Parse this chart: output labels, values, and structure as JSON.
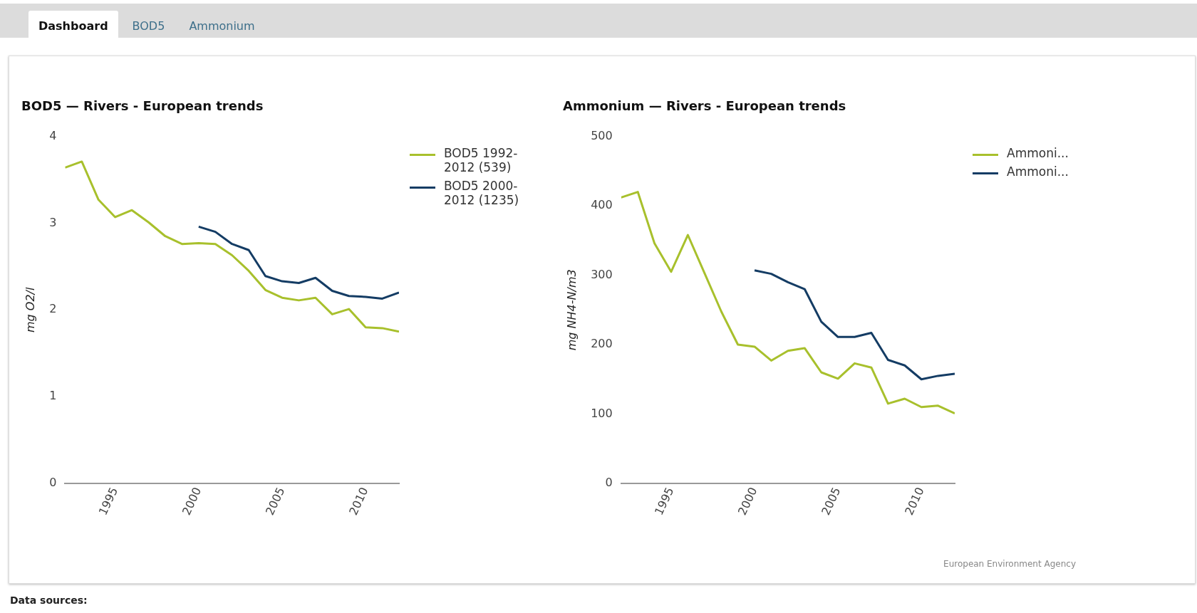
{
  "chart_data": [
    {
      "type": "line",
      "title": "BOD5 — Rivers - European trends",
      "ylabel": "mg O2/l",
      "x": [
        1992,
        1993,
        1994,
        1995,
        1996,
        1997,
        1998,
        1999,
        2000,
        2001,
        2002,
        2003,
        2004,
        2005,
        2006,
        2007,
        2008,
        2009,
        2010,
        2011,
        2012
      ],
      "series": [
        {
          "name": "BOD5 1992-2012 (539)",
          "color": "#a8c02c",
          "values": [
            3.64,
            3.71,
            3.27,
            3.07,
            3.15,
            3.01,
            2.85,
            2.76,
            2.77,
            2.76,
            2.63,
            2.45,
            2.23,
            2.14,
            2.11,
            2.14,
            1.95,
            2.01,
            1.8,
            1.79,
            1.75
          ]
        },
        {
          "name": "BOD5 2000-2012 (1235)",
          "color": "#143c64",
          "values": [
            null,
            null,
            null,
            null,
            null,
            null,
            null,
            null,
            2.96,
            2.9,
            2.76,
            2.69,
            2.39,
            2.33,
            2.31,
            2.37,
            2.22,
            2.16,
            2.15,
            2.13,
            2.2
          ]
        }
      ],
      "xlim": [
        1992,
        2012
      ],
      "xticks": [
        1995,
        2000,
        2005,
        2010
      ],
      "ylim": [
        0,
        4
      ],
      "yticks": [
        0,
        1,
        2,
        3,
        4
      ],
      "legend": "top right",
      "marker": "none"
    },
    {
      "type": "line",
      "title": "Ammonium — Rivers - European trends",
      "ylabel": "mg NH4-N/m3",
      "x": [
        1992,
        1993,
        1994,
        1995,
        1996,
        1997,
        1998,
        1999,
        2000,
        2001,
        2002,
        2003,
        2004,
        2005,
        2006,
        2007,
        2008,
        2009,
        2010,
        2011,
        2012
      ],
      "series": [
        {
          "name": "Ammoni...",
          "color": "#a8c02c",
          "values": [
            412,
            420,
            346,
            305,
            358,
            303,
            248,
            200,
            197,
            177,
            191,
            195,
            160,
            151,
            173,
            167,
            115,
            122,
            110,
            112,
            101
          ]
        },
        {
          "name": "Ammoni...",
          "color": "#143c64",
          "values": [
            null,
            null,
            null,
            null,
            null,
            null,
            null,
            null,
            307,
            302,
            290,
            280,
            233,
            211,
            211,
            217,
            178,
            170,
            150,
            155,
            158
          ]
        }
      ],
      "xlim": [
        1992,
        2012
      ],
      "xticks": [
        1995,
        2000,
        2005,
        2010
      ],
      "ylim": [
        0,
        500
      ],
      "yticks": [
        0,
        100,
        200,
        300,
        400,
        500
      ],
      "legend": "top right",
      "marker": "none",
      "annotations": [
        "European Environment Agency"
      ]
    },
    {
      "type": "other",
      "annotations": [
        "Dashboard",
        "BOD5",
        "Ammonium",
        "Data sources:"
      ]
    }
  ]
}
